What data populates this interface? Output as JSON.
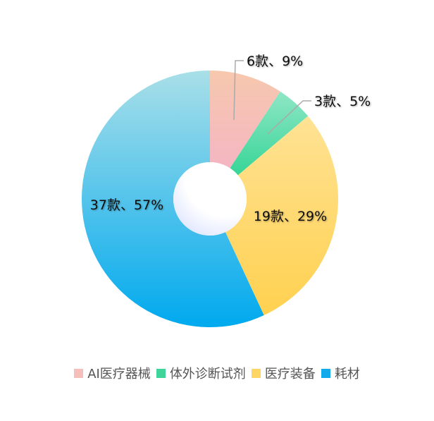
{
  "chart_data": {
    "type": "pie",
    "variant": "donut",
    "categories": [
      "AI医疗器械",
      "体外诊断试剂",
      "医疗装备",
      "耗材"
    ],
    "values": [
      6,
      3,
      19,
      37
    ],
    "percents": [
      9,
      5,
      29,
      57
    ],
    "data_labels": [
      "6款、9%",
      "3款、5%",
      "19款、29%",
      "37款、57%"
    ],
    "colors": [
      [
        "#f7c8ae",
        "#f4b6c2"
      ],
      [
        "#8fe6c5",
        "#37d597"
      ],
      [
        "#ffe294",
        "#ffd150"
      ],
      [
        "#a9dfe8",
        "#00a9ee"
      ]
    ],
    "legend_colors": [
      "#f6bfbb",
      "#3fd49a",
      "#ffd666",
      "#12aaea"
    ],
    "legend_position": "bottom"
  }
}
